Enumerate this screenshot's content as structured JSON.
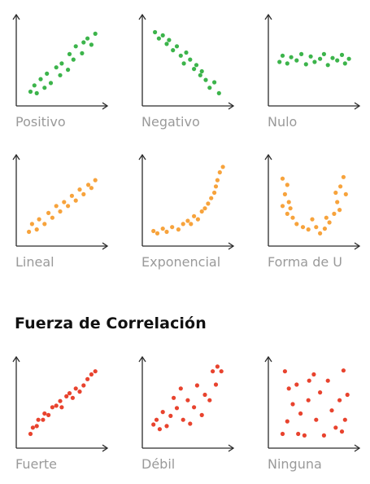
{
  "section_title": "Fuerza de Correlación",
  "colors": {
    "axis": "#2b2b2b",
    "label": "#9a9a9a",
    "green": "#3cb44b",
    "orange": "#f7a33c",
    "red": "#e8432e"
  },
  "chart_data": [
    {
      "type": "scatter",
      "label": "Positivo",
      "color": "green",
      "points": [
        [
          0.12,
          0.12
        ],
        [
          0.17,
          0.2
        ],
        [
          0.2,
          0.1
        ],
        [
          0.25,
          0.28
        ],
        [
          0.3,
          0.17
        ],
        [
          0.33,
          0.35
        ],
        [
          0.38,
          0.23
        ],
        [
          0.45,
          0.43
        ],
        [
          0.5,
          0.33
        ],
        [
          0.52,
          0.48
        ],
        [
          0.6,
          0.4
        ],
        [
          0.62,
          0.6
        ],
        [
          0.67,
          0.53
        ],
        [
          0.7,
          0.7
        ],
        [
          0.78,
          0.61
        ],
        [
          0.8,
          0.75
        ],
        [
          0.85,
          0.8
        ],
        [
          0.9,
          0.72
        ],
        [
          0.95,
          0.86
        ]
      ]
    },
    {
      "type": "scatter",
      "label": "Negativo",
      "color": "green",
      "points": [
        [
          0.1,
          0.88
        ],
        [
          0.15,
          0.8
        ],
        [
          0.2,
          0.84
        ],
        [
          0.25,
          0.73
        ],
        [
          0.28,
          0.78
        ],
        [
          0.33,
          0.65
        ],
        [
          0.38,
          0.7
        ],
        [
          0.43,
          0.58
        ],
        [
          0.47,
          0.48
        ],
        [
          0.5,
          0.62
        ],
        [
          0.55,
          0.53
        ],
        [
          0.6,
          0.41
        ],
        [
          0.63,
          0.46
        ],
        [
          0.68,
          0.33
        ],
        [
          0.7,
          0.38
        ],
        [
          0.75,
          0.27
        ],
        [
          0.8,
          0.17
        ],
        [
          0.86,
          0.24
        ],
        [
          0.92,
          0.1
        ]
      ]
    },
    {
      "type": "scatter",
      "label": "Nulo",
      "color": "green",
      "points": [
        [
          0.08,
          0.5
        ],
        [
          0.12,
          0.58
        ],
        [
          0.18,
          0.48
        ],
        [
          0.23,
          0.56
        ],
        [
          0.3,
          0.52
        ],
        [
          0.36,
          0.6
        ],
        [
          0.42,
          0.47
        ],
        [
          0.48,
          0.57
        ],
        [
          0.53,
          0.5
        ],
        [
          0.6,
          0.54
        ],
        [
          0.65,
          0.6
        ],
        [
          0.7,
          0.46
        ],
        [
          0.76,
          0.55
        ],
        [
          0.82,
          0.52
        ],
        [
          0.88,
          0.59
        ],
        [
          0.92,
          0.48
        ],
        [
          0.97,
          0.54
        ]
      ]
    },
    {
      "type": "scatter",
      "label": "Lineal",
      "color": "orange",
      "points": [
        [
          0.1,
          0.12
        ],
        [
          0.14,
          0.22
        ],
        [
          0.2,
          0.15
        ],
        [
          0.23,
          0.28
        ],
        [
          0.3,
          0.22
        ],
        [
          0.35,
          0.36
        ],
        [
          0.4,
          0.3
        ],
        [
          0.45,
          0.45
        ],
        [
          0.5,
          0.38
        ],
        [
          0.55,
          0.5
        ],
        [
          0.6,
          0.45
        ],
        [
          0.65,
          0.58
        ],
        [
          0.7,
          0.52
        ],
        [
          0.75,
          0.66
        ],
        [
          0.8,
          0.6
        ],
        [
          0.86,
          0.72
        ],
        [
          0.9,
          0.68
        ],
        [
          0.95,
          0.78
        ]
      ]
    },
    {
      "type": "scatter",
      "label": "Exponencial",
      "color": "orange",
      "points": [
        [
          0.08,
          0.13
        ],
        [
          0.13,
          0.1
        ],
        [
          0.2,
          0.16
        ],
        [
          0.25,
          0.12
        ],
        [
          0.32,
          0.18
        ],
        [
          0.4,
          0.15
        ],
        [
          0.46,
          0.22
        ],
        [
          0.52,
          0.26
        ],
        [
          0.56,
          0.22
        ],
        [
          0.6,
          0.32
        ],
        [
          0.65,
          0.28
        ],
        [
          0.7,
          0.38
        ],
        [
          0.74,
          0.42
        ],
        [
          0.78,
          0.48
        ],
        [
          0.82,
          0.55
        ],
        [
          0.86,
          0.62
        ],
        [
          0.88,
          0.7
        ],
        [
          0.9,
          0.78
        ],
        [
          0.93,
          0.88
        ],
        [
          0.97,
          0.95
        ]
      ]
    },
    {
      "type": "scatter",
      "label": "Forma de U",
      "color": "orange",
      "points": [
        [
          0.12,
          0.8
        ],
        [
          0.18,
          0.72
        ],
        [
          0.15,
          0.6
        ],
        [
          0.2,
          0.5
        ],
        [
          0.12,
          0.45
        ],
        [
          0.18,
          0.35
        ],
        [
          0.25,
          0.3
        ],
        [
          0.22,
          0.42
        ],
        [
          0.3,
          0.22
        ],
        [
          0.38,
          0.18
        ],
        [
          0.45,
          0.15
        ],
        [
          0.5,
          0.28
        ],
        [
          0.55,
          0.18
        ],
        [
          0.6,
          0.1
        ],
        [
          0.66,
          0.16
        ],
        [
          0.68,
          0.3
        ],
        [
          0.72,
          0.24
        ],
        [
          0.78,
          0.35
        ],
        [
          0.82,
          0.5
        ],
        [
          0.8,
          0.62
        ],
        [
          0.86,
          0.7
        ],
        [
          0.9,
          0.82
        ],
        [
          0.85,
          0.4
        ],
        [
          0.93,
          0.6
        ]
      ]
    },
    {
      "type": "scatter",
      "label": "Fuerte",
      "color": "red",
      "points": [
        [
          0.12,
          0.12
        ],
        [
          0.15,
          0.2
        ],
        [
          0.2,
          0.22
        ],
        [
          0.22,
          0.3
        ],
        [
          0.28,
          0.3
        ],
        [
          0.3,
          0.38
        ],
        [
          0.35,
          0.36
        ],
        [
          0.4,
          0.46
        ],
        [
          0.45,
          0.48
        ],
        [
          0.5,
          0.54
        ],
        [
          0.52,
          0.46
        ],
        [
          0.58,
          0.6
        ],
        [
          0.62,
          0.64
        ],
        [
          0.66,
          0.58
        ],
        [
          0.7,
          0.7
        ],
        [
          0.75,
          0.66
        ],
        [
          0.8,
          0.74
        ],
        [
          0.85,
          0.82
        ],
        [
          0.9,
          0.88
        ],
        [
          0.95,
          0.92
        ]
      ]
    },
    {
      "type": "scatter",
      "label": "Débil",
      "color": "red",
      "points": [
        [
          0.08,
          0.24
        ],
        [
          0.12,
          0.3
        ],
        [
          0.16,
          0.18
        ],
        [
          0.2,
          0.4
        ],
        [
          0.25,
          0.22
        ],
        [
          0.3,
          0.35
        ],
        [
          0.34,
          0.58
        ],
        [
          0.38,
          0.45
        ],
        [
          0.43,
          0.7
        ],
        [
          0.46,
          0.3
        ],
        [
          0.52,
          0.55
        ],
        [
          0.55,
          0.25
        ],
        [
          0.6,
          0.46
        ],
        [
          0.64,
          0.74
        ],
        [
          0.7,
          0.36
        ],
        [
          0.74,
          0.62
        ],
        [
          0.8,
          0.55
        ],
        [
          0.84,
          0.92
        ],
        [
          0.88,
          0.75
        ],
        [
          0.9,
          0.98
        ],
        [
          0.95,
          0.92
        ]
      ]
    },
    {
      "type": "scatter",
      "label": "Ninguna",
      "color": "red",
      "points": [
        [
          0.15,
          0.92
        ],
        [
          0.2,
          0.7
        ],
        [
          0.25,
          0.5
        ],
        [
          0.18,
          0.28
        ],
        [
          0.12,
          0.12
        ],
        [
          0.3,
          0.75
        ],
        [
          0.35,
          0.38
        ],
        [
          0.4,
          0.1
        ],
        [
          0.45,
          0.55
        ],
        [
          0.52,
          0.88
        ],
        [
          0.55,
          0.3
        ],
        [
          0.6,
          0.65
        ],
        [
          0.65,
          0.1
        ],
        [
          0.7,
          0.8
        ],
        [
          0.75,
          0.42
        ],
        [
          0.8,
          0.2
        ],
        [
          0.85,
          0.55
        ],
        [
          0.9,
          0.93
        ],
        [
          0.92,
          0.3
        ],
        [
          0.95,
          0.62
        ],
        [
          0.88,
          0.15
        ],
        [
          0.32,
          0.12
        ],
        [
          0.46,
          0.8
        ]
      ]
    }
  ]
}
